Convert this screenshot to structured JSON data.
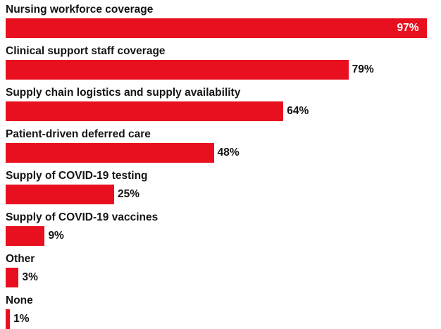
{
  "chart_data": {
    "type": "bar",
    "orientation": "horizontal",
    "categories": [
      "Nursing workforce coverage",
      "Clinical support staff coverage",
      "Supply chain logistics and supply availability",
      "Patient-driven deferred care",
      "Supply of COVID-19 testing",
      "Supply of COVID-19 vaccines",
      "Other",
      "None"
    ],
    "values": [
      97,
      79,
      64,
      48,
      25,
      9,
      3,
      1
    ],
    "value_labels": [
      "97%",
      "79%",
      "64%",
      "48%",
      "25%",
      "9%",
      "3%",
      "1%"
    ],
    "xlim": [
      0,
      100
    ],
    "bar_color": "#e8101f",
    "grid": false,
    "legend": "none"
  }
}
